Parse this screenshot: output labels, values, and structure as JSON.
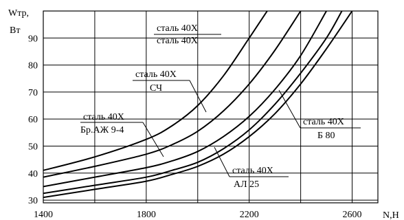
{
  "chart_data": {
    "type": "line",
    "xlabel": "N,Н",
    "ylabel_line1": "Wтр,",
    "ylabel_line2": "Вт",
    "xlim": [
      1400,
      2700
    ],
    "ylim": [
      29,
      100
    ],
    "x_ticks": [
      1400,
      1800,
      2200,
      2600
    ],
    "x_grid": [
      1400,
      1600,
      1800,
      2000,
      2200,
      2400,
      2600
    ],
    "y_ticks": [
      30,
      40,
      50,
      60,
      70,
      80,
      90
    ],
    "grid": true,
    "series": [
      {
        "name": "сталь 40Х / сталь 40Х",
        "label_lines": [
          "сталь 40Х",
          "сталь 40Х"
        ],
        "points": [
          [
            1400,
            41
          ],
          [
            1600,
            46
          ],
          [
            1800,
            52.5
          ],
          [
            1900,
            57.5
          ],
          [
            2000,
            65
          ],
          [
            2100,
            76
          ],
          [
            2200,
            90
          ],
          [
            2270,
            100
          ]
        ]
      },
      {
        "name": "сталь 40Х / СЧ",
        "label_lines": [
          "сталь 40Х",
          "СЧ"
        ],
        "points": [
          [
            1400,
            38.5
          ],
          [
            1600,
            42.5
          ],
          [
            1800,
            47
          ],
          [
            1900,
            50.5
          ],
          [
            2000,
            55.5
          ],
          [
            2100,
            63
          ],
          [
            2200,
            73
          ],
          [
            2300,
            85.5
          ],
          [
            2400,
            100
          ]
        ]
      },
      {
        "name": "сталь 40Х / Бр.АЖ 9-4",
        "label_lines": [
          "сталь 40Х",
          "Бр.АЖ 9-4"
        ],
        "points": [
          [
            1400,
            35
          ],
          [
            1600,
            38.5
          ],
          [
            1800,
            42
          ],
          [
            1900,
            44.5
          ],
          [
            2000,
            48
          ],
          [
            2100,
            53.5
          ],
          [
            2200,
            61
          ],
          [
            2300,
            71
          ],
          [
            2400,
            83.5
          ],
          [
            2500,
            100
          ]
        ]
      },
      {
        "name": "сталь 40Х / АЛ 25",
        "label_lines": [
          "сталь 40Х",
          "АЛ 25"
        ],
        "points": [
          [
            1400,
            32.5
          ],
          [
            1600,
            35.5
          ],
          [
            1800,
            38.5
          ],
          [
            1900,
            41
          ],
          [
            2000,
            44
          ],
          [
            2100,
            49
          ],
          [
            2200,
            56
          ],
          [
            2300,
            65.5
          ],
          [
            2400,
            77
          ],
          [
            2500,
            90
          ],
          [
            2560,
            100
          ]
        ]
      },
      {
        "name": "сталь 40Х / Б 80",
        "label_lines": [
          "сталь 40Х",
          "Б 80"
        ],
        "points": [
          [
            1400,
            31
          ],
          [
            1600,
            34
          ],
          [
            1800,
            37
          ],
          [
            1900,
            39.5
          ],
          [
            2000,
            42.5
          ],
          [
            2100,
            47
          ],
          [
            2200,
            53.5
          ],
          [
            2300,
            62
          ],
          [
            2400,
            73
          ],
          [
            2500,
            86
          ],
          [
            2600,
            100
          ]
        ]
      }
    ]
  }
}
